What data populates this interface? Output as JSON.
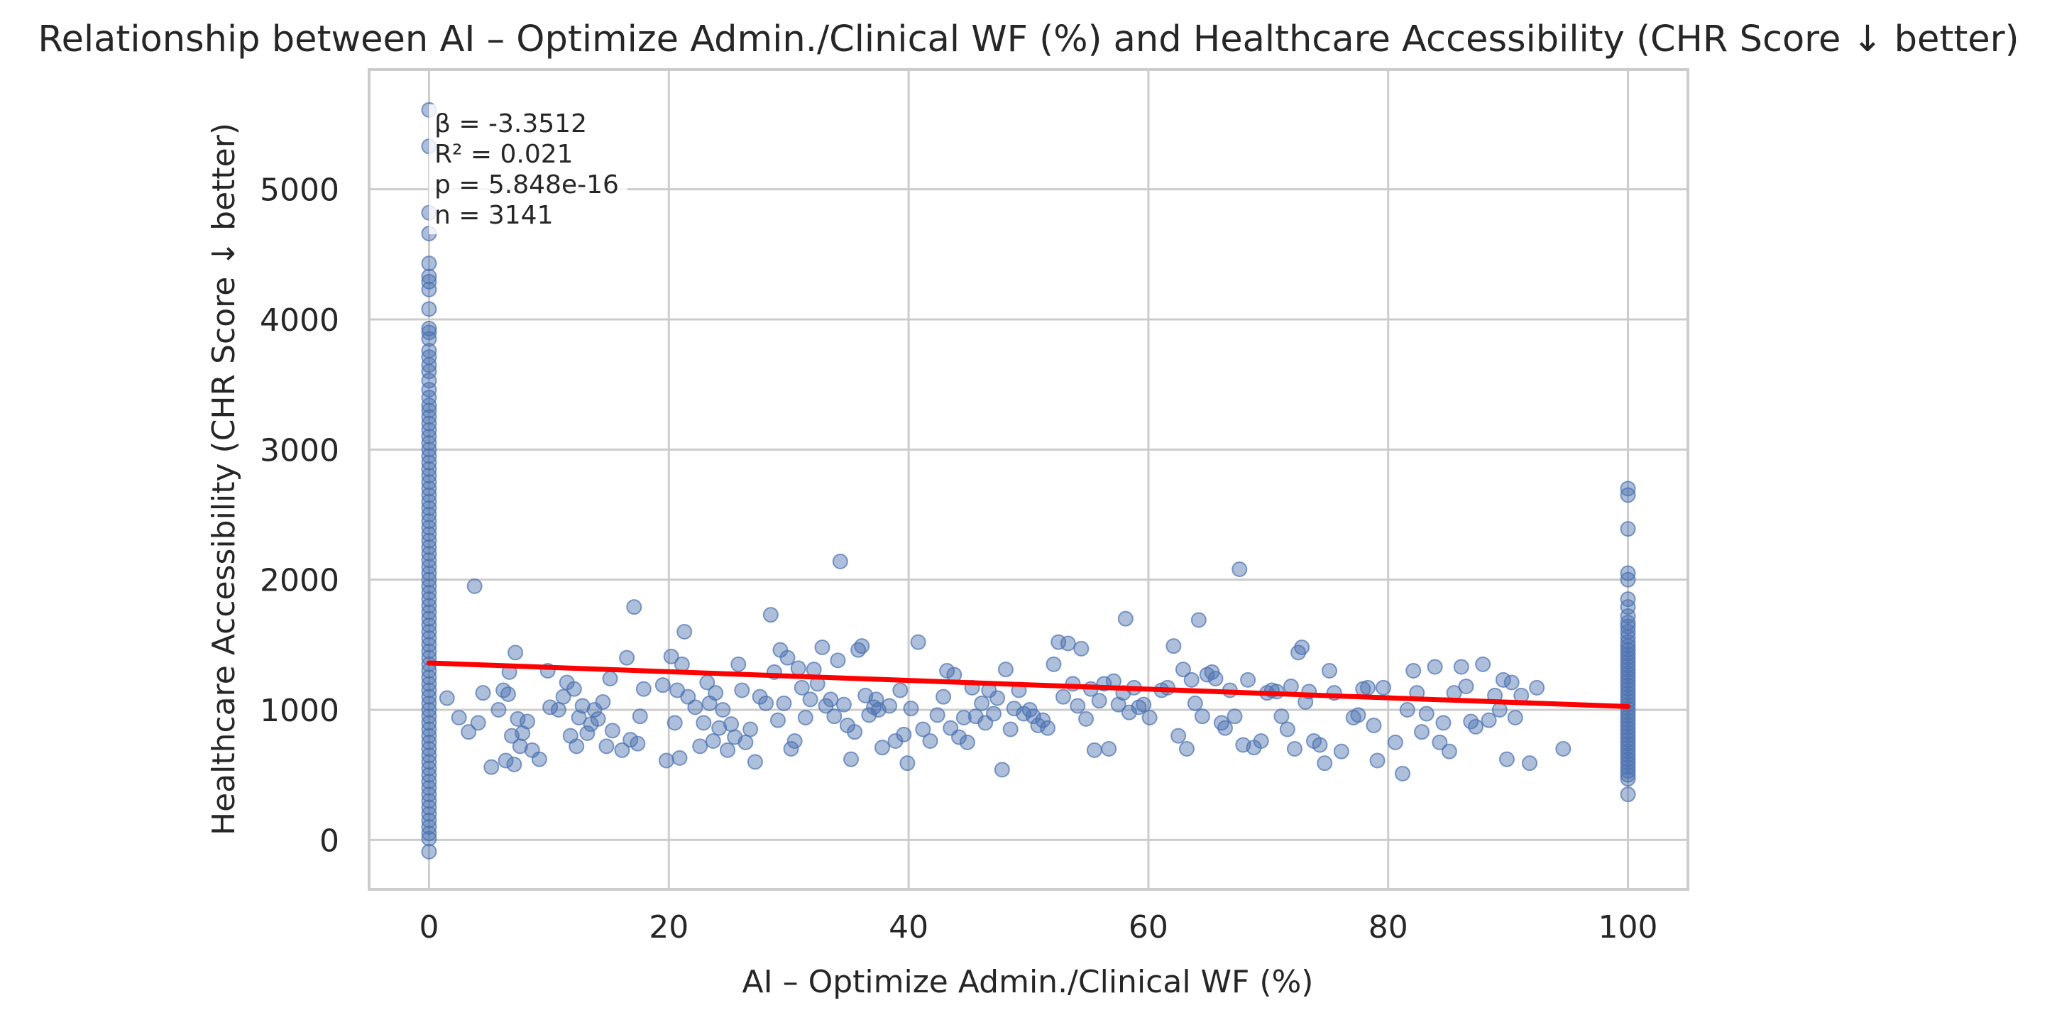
{
  "chart_data": {
    "type": "scatter",
    "title": "Relationship between AI – Optimize Admin./Clinical WF (%) and Healthcare Accessibility (CHR Score ↓ better)",
    "xlabel": "AI – Optimize Admin./Clinical WF (%)",
    "ylabel": "Healthcare Accessibility (CHR Score ↓ better)",
    "xlim": [
      -5,
      105
    ],
    "ylim": [
      -380,
      5920
    ],
    "xticks": [
      0,
      20,
      40,
      60,
      80,
      100
    ],
    "yticks": [
      0,
      1000,
      2000,
      3000,
      4000,
      5000
    ],
    "xtick_labels": [
      "0",
      "20",
      "40",
      "60",
      "80",
      "100"
    ],
    "ytick_labels": [
      "0",
      "1000",
      "2000",
      "3000",
      "4000",
      "5000"
    ],
    "grid": true,
    "legend": "none",
    "point_color": "#4c72b0",
    "point_alpha": 0.45,
    "line_color": "#ff0000",
    "regression_line": {
      "x": [
        0,
        100
      ],
      "y": [
        1360,
        1025
      ]
    },
    "annotation": [
      "β = -3.3512",
      "R² = 0.021",
      "p = 5.848e-16",
      "n = 3141"
    ],
    "points_at_x0": [
      5610,
      5330,
      4820,
      4660,
      4430,
      4330,
      4290,
      4230,
      4080,
      3930,
      3900,
      3850,
      3760,
      3710,
      3650,
      3600,
      3530,
      3460,
      3400,
      3340,
      3300,
      3250,
      3200,
      3150,
      3100,
      3050,
      3000,
      2950,
      2900,
      2850,
      2800,
      2750,
      2700,
      2650,
      2600,
      2550,
      2500,
      2450,
      2400,
      2350,
      2300,
      2250,
      2200,
      2150,
      2100,
      2050,
      2000,
      1950,
      1900,
      1850,
      1800,
      1750,
      1700,
      1650,
      1600,
      1550,
      1500,
      1450,
      1400,
      1350,
      1300,
      1250,
      1200,
      1150,
      1100,
      1050,
      1000,
      950,
      900,
      850,
      800,
      750,
      700,
      650,
      600,
      550,
      500,
      450,
      400,
      350,
      300,
      250,
      200,
      150,
      100,
      50,
      10,
      -90
    ],
    "points_at_x100": [
      2700,
      2650,
      2390,
      2050,
      2000,
      1850,
      1790,
      1720,
      1670,
      1640,
      1600,
      1560,
      1520,
      1490,
      1460,
      1430,
      1400,
      1370,
      1340,
      1310,
      1280,
      1250,
      1220,
      1190,
      1160,
      1130,
      1100,
      1070,
      1040,
      1010,
      980,
      950,
      920,
      890,
      860,
      830,
      800,
      770,
      740,
      710,
      680,
      650,
      620,
      590,
      560,
      530,
      500,
      470,
      350
    ],
    "points_mid": [
      [
        1.5,
        1090
      ],
      [
        2.5,
        940
      ],
      [
        3.3,
        830
      ],
      [
        3.8,
        1950
      ],
      [
        4.1,
        900
      ],
      [
        4.5,
        1130
      ],
      [
        5.2,
        560
      ],
      [
        5.8,
        1000
      ],
      [
        6.2,
        1150
      ],
      [
        6.4,
        610
      ],
      [
        6.6,
        1120
      ],
      [
        6.7,
        1290
      ],
      [
        6.9,
        800
      ],
      [
        7.1,
        580
      ],
      [
        7.2,
        1440
      ],
      [
        7.4,
        930
      ],
      [
        7.6,
        720
      ],
      [
        7.8,
        820
      ],
      [
        8.2,
        910
      ],
      [
        8.6,
        690
      ],
      [
        9.2,
        620
      ],
      [
        9.9,
        1300
      ],
      [
        10.1,
        1020
      ],
      [
        10.8,
        1000
      ],
      [
        11.2,
        1100
      ],
      [
        11.5,
        1210
      ],
      [
        11.8,
        800
      ],
      [
        12.1,
        1160
      ],
      [
        12.3,
        720
      ],
      [
        12.5,
        940
      ],
      [
        12.8,
        1030
      ],
      [
        13.2,
        820
      ],
      [
        13.5,
        890
      ],
      [
        13.8,
        1000
      ],
      [
        14.1,
        930
      ],
      [
        14.5,
        1060
      ],
      [
        14.8,
        720
      ],
      [
        15.1,
        1240
      ],
      [
        15.3,
        840
      ],
      [
        16.1,
        690
      ],
      [
        16.5,
        1400
      ],
      [
        16.8,
        770
      ],
      [
        17.1,
        1790
      ],
      [
        17.4,
        740
      ],
      [
        17.6,
        950
      ],
      [
        17.9,
        1160
      ],
      [
        19.5,
        1190
      ],
      [
        19.8,
        610
      ],
      [
        20.2,
        1410
      ],
      [
        20.5,
        900
      ],
      [
        20.7,
        1150
      ],
      [
        20.9,
        630
      ],
      [
        21.1,
        1350
      ],
      [
        21.3,
        1600
      ],
      [
        21.6,
        1100
      ],
      [
        22.2,
        1020
      ],
      [
        22.6,
        720
      ],
      [
        22.9,
        900
      ],
      [
        23.2,
        1210
      ],
      [
        23.4,
        1050
      ],
      [
        23.7,
        760
      ],
      [
        23.9,
        1130
      ],
      [
        24.2,
        860
      ],
      [
        24.5,
        1000
      ],
      [
        24.9,
        690
      ],
      [
        25.2,
        890
      ],
      [
        25.5,
        790
      ],
      [
        25.8,
        1350
      ],
      [
        26.1,
        1150
      ],
      [
        26.4,
        750
      ],
      [
        26.8,
        850
      ],
      [
        27.2,
        600
      ],
      [
        27.6,
        1100
      ],
      [
        28.1,
        1050
      ],
      [
        28.5,
        1730
      ],
      [
        28.8,
        1290
      ],
      [
        29.1,
        920
      ],
      [
        29.3,
        1460
      ],
      [
        29.6,
        1050
      ],
      [
        29.9,
        1400
      ],
      [
        30.2,
        700
      ],
      [
        30.5,
        760
      ],
      [
        30.8,
        1320
      ],
      [
        31.1,
        1170
      ],
      [
        31.4,
        940
      ],
      [
        31.8,
        1080
      ],
      [
        32.1,
        1310
      ],
      [
        32.4,
        1200
      ],
      [
        32.8,
        1480
      ],
      [
        33.1,
        1030
      ],
      [
        33.5,
        1080
      ],
      [
        33.8,
        950
      ],
      [
        34.1,
        1380
      ],
      [
        34.3,
        2140
      ],
      [
        34.6,
        1040
      ],
      [
        34.9,
        880
      ],
      [
        35.2,
        620
      ],
      [
        35.5,
        830
      ],
      [
        35.8,
        1460
      ],
      [
        36.1,
        1490
      ],
      [
        36.4,
        1110
      ],
      [
        36.7,
        960
      ],
      [
        37.1,
        1020
      ],
      [
        37.3,
        1080
      ],
      [
        37.5,
        1000
      ],
      [
        37.8,
        710
      ],
      [
        38.4,
        1030
      ],
      [
        38.9,
        760
      ],
      [
        39.3,
        1150
      ],
      [
        39.6,
        810
      ],
      [
        39.9,
        590
      ],
      [
        40.2,
        1010
      ],
      [
        40.8,
        1520
      ],
      [
        41.2,
        850
      ],
      [
        41.8,
        760
      ],
      [
        42.4,
        960
      ],
      [
        42.9,
        1100
      ],
      [
        43.2,
        1300
      ],
      [
        43.5,
        860
      ],
      [
        43.8,
        1270
      ],
      [
        44.2,
        790
      ],
      [
        44.6,
        940
      ],
      [
        44.9,
        750
      ],
      [
        45.3,
        1170
      ],
      [
        45.6,
        950
      ],
      [
        46.1,
        1050
      ],
      [
        46.4,
        900
      ],
      [
        46.7,
        1150
      ],
      [
        47.1,
        970
      ],
      [
        47.4,
        1090
      ],
      [
        47.8,
        540
      ],
      [
        48.1,
        1310
      ],
      [
        48.5,
        850
      ],
      [
        48.8,
        1010
      ],
      [
        49.2,
        1150
      ],
      [
        49.6,
        970
      ],
      [
        50.1,
        1000
      ],
      [
        50.4,
        950
      ],
      [
        50.8,
        880
      ],
      [
        51.2,
        920
      ],
      [
        51.6,
        860
      ],
      [
        52.1,
        1350
      ],
      [
        52.5,
        1520
      ],
      [
        52.9,
        1100
      ],
      [
        53.3,
        1510
      ],
      [
        53.7,
        1200
      ],
      [
        54.1,
        1030
      ],
      [
        54.4,
        1470
      ],
      [
        54.8,
        930
      ],
      [
        55.2,
        1160
      ],
      [
        55.5,
        690
      ],
      [
        55.9,
        1070
      ],
      [
        56.3,
        1200
      ],
      [
        56.7,
        700
      ],
      [
        57.1,
        1220
      ],
      [
        57.5,
        1040
      ],
      [
        57.9,
        1130
      ],
      [
        58.1,
        1700
      ],
      [
        58.4,
        980
      ],
      [
        58.8,
        1170
      ],
      [
        59.2,
        1020
      ],
      [
        59.6,
        1040
      ],
      [
        60.1,
        940
      ],
      [
        61.1,
        1150
      ],
      [
        61.6,
        1170
      ],
      [
        62.1,
        1490
      ],
      [
        62.5,
        800
      ],
      [
        62.9,
        1310
      ],
      [
        63.2,
        700
      ],
      [
        63.6,
        1230
      ],
      [
        63.9,
        1050
      ],
      [
        64.2,
        1690
      ],
      [
        64.5,
        950
      ],
      [
        64.9,
        1270
      ],
      [
        65.3,
        1290
      ],
      [
        65.6,
        1240
      ],
      [
        66.1,
        900
      ],
      [
        66.4,
        860
      ],
      [
        66.8,
        1150
      ],
      [
        67.2,
        950
      ],
      [
        67.6,
        2080
      ],
      [
        67.9,
        730
      ],
      [
        68.3,
        1230
      ],
      [
        68.8,
        710
      ],
      [
        69.4,
        760
      ],
      [
        69.9,
        1130
      ],
      [
        70.3,
        1150
      ],
      [
        70.7,
        1140
      ],
      [
        71.1,
        950
      ],
      [
        71.6,
        850
      ],
      [
        71.9,
        1180
      ],
      [
        72.2,
        700
      ],
      [
        72.5,
        1440
      ],
      [
        72.8,
        1480
      ],
      [
        73.1,
        1060
      ],
      [
        73.4,
        1140
      ],
      [
        73.8,
        760
      ],
      [
        74.3,
        730
      ],
      [
        74.7,
        590
      ],
      [
        75.1,
        1300
      ],
      [
        75.5,
        1130
      ],
      [
        76.1,
        680
      ],
      [
        77.1,
        940
      ],
      [
        77.5,
        960
      ],
      [
        77.9,
        1160
      ],
      [
        78.3,
        1170
      ],
      [
        78.8,
        880
      ],
      [
        79.1,
        610
      ],
      [
        79.6,
        1170
      ],
      [
        80.6,
        750
      ],
      [
        81.2,
        510
      ],
      [
        81.6,
        1000
      ],
      [
        82.1,
        1300
      ],
      [
        82.4,
        1130
      ],
      [
        82.8,
        830
      ],
      [
        83.2,
        970
      ],
      [
        83.9,
        1330
      ],
      [
        84.3,
        750
      ],
      [
        84.6,
        900
      ],
      [
        85.1,
        680
      ],
      [
        85.5,
        1130
      ],
      [
        86.1,
        1330
      ],
      [
        86.5,
        1180
      ],
      [
        86.9,
        910
      ],
      [
        87.3,
        870
      ],
      [
        87.9,
        1350
      ],
      [
        88.4,
        920
      ],
      [
        88.9,
        1110
      ],
      [
        89.3,
        1000
      ],
      [
        89.6,
        1230
      ],
      [
        89.9,
        620
      ],
      [
        90.3,
        1210
      ],
      [
        90.6,
        940
      ],
      [
        91.1,
        1110
      ],
      [
        91.8,
        590
      ],
      [
        92.4,
        1170
      ],
      [
        94.6,
        700
      ]
    ]
  }
}
